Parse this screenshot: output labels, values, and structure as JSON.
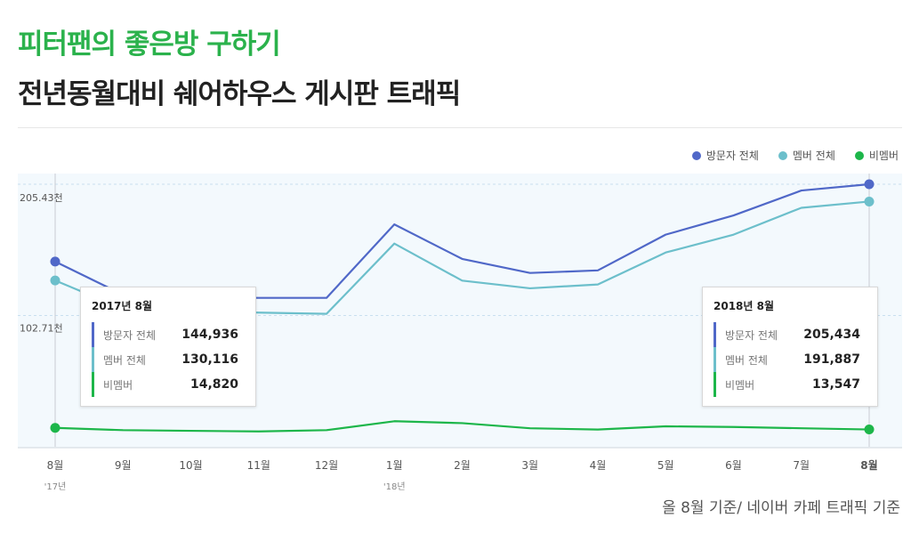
{
  "header": {
    "title": "피터팬의 좋은방 구하기",
    "subtitle": "전년동월대비 쉐어하우스 게시판 트래픽"
  },
  "legend": [
    {
      "label": "방문자 전체",
      "color": "#5068c8"
    },
    {
      "label": "멤버 전체",
      "color": "#6cbfcb"
    },
    {
      "label": "비멤버",
      "color": "#1db64a"
    }
  ],
  "chart_data": {
    "type": "line",
    "categories": [
      "8월",
      "9월",
      "10월",
      "11월",
      "12월",
      "1월",
      "2월",
      "3월",
      "4월",
      "5월",
      "6월",
      "7월",
      "8월"
    ],
    "year_labels": [
      "'17년",
      "",
      "",
      "",
      "",
      "'18년",
      "",
      "",
      "",
      "",
      "",
      "",
      ""
    ],
    "y_ticks": [
      "205.43천",
      "102.71천"
    ],
    "ylim": [
      0,
      205434
    ],
    "series": [
      {
        "name": "방문자 전체",
        "color": "#5068c8",
        "values": [
          144936,
          119000,
          117000,
          116500,
          116500,
          174000,
          147000,
          136000,
          138000,
          166000,
          181000,
          200500,
          205434
        ]
      },
      {
        "name": "멤버 전체",
        "color": "#6cbfcb",
        "values": [
          130116,
          108000,
          106000,
          105000,
          104000,
          159000,
          130000,
          124000,
          127000,
          152000,
          166000,
          187000,
          191887
        ]
      },
      {
        "name": "비멤버",
        "color": "#1db64a",
        "values": [
          14820,
          13000,
          12500,
          12000,
          13000,
          20000,
          18500,
          14500,
          13500,
          16000,
          15500,
          14500,
          13547
        ]
      }
    ]
  },
  "tooltips": [
    {
      "date": "2017년 8월",
      "rows": [
        {
          "label": "방문자 전체",
          "value": "144,936",
          "color": "#5068c8"
        },
        {
          "label": "멤버 전체",
          "value": "130,116",
          "color": "#6cbfcb"
        },
        {
          "label": "비멤버",
          "value": "14,820",
          "color": "#1db64a"
        }
      ]
    },
    {
      "date": "2018년 8월",
      "rows": [
        {
          "label": "방문자 전체",
          "value": "205,434",
          "color": "#5068c8"
        },
        {
          "label": "멤버 전체",
          "value": "191,887",
          "color": "#6cbfcb"
        },
        {
          "label": "비멤버",
          "value": "13,547",
          "color": "#1db64a"
        }
      ]
    }
  ],
  "footnote": "올 8월 기준/ 네이버 카페 트래픽 기준"
}
